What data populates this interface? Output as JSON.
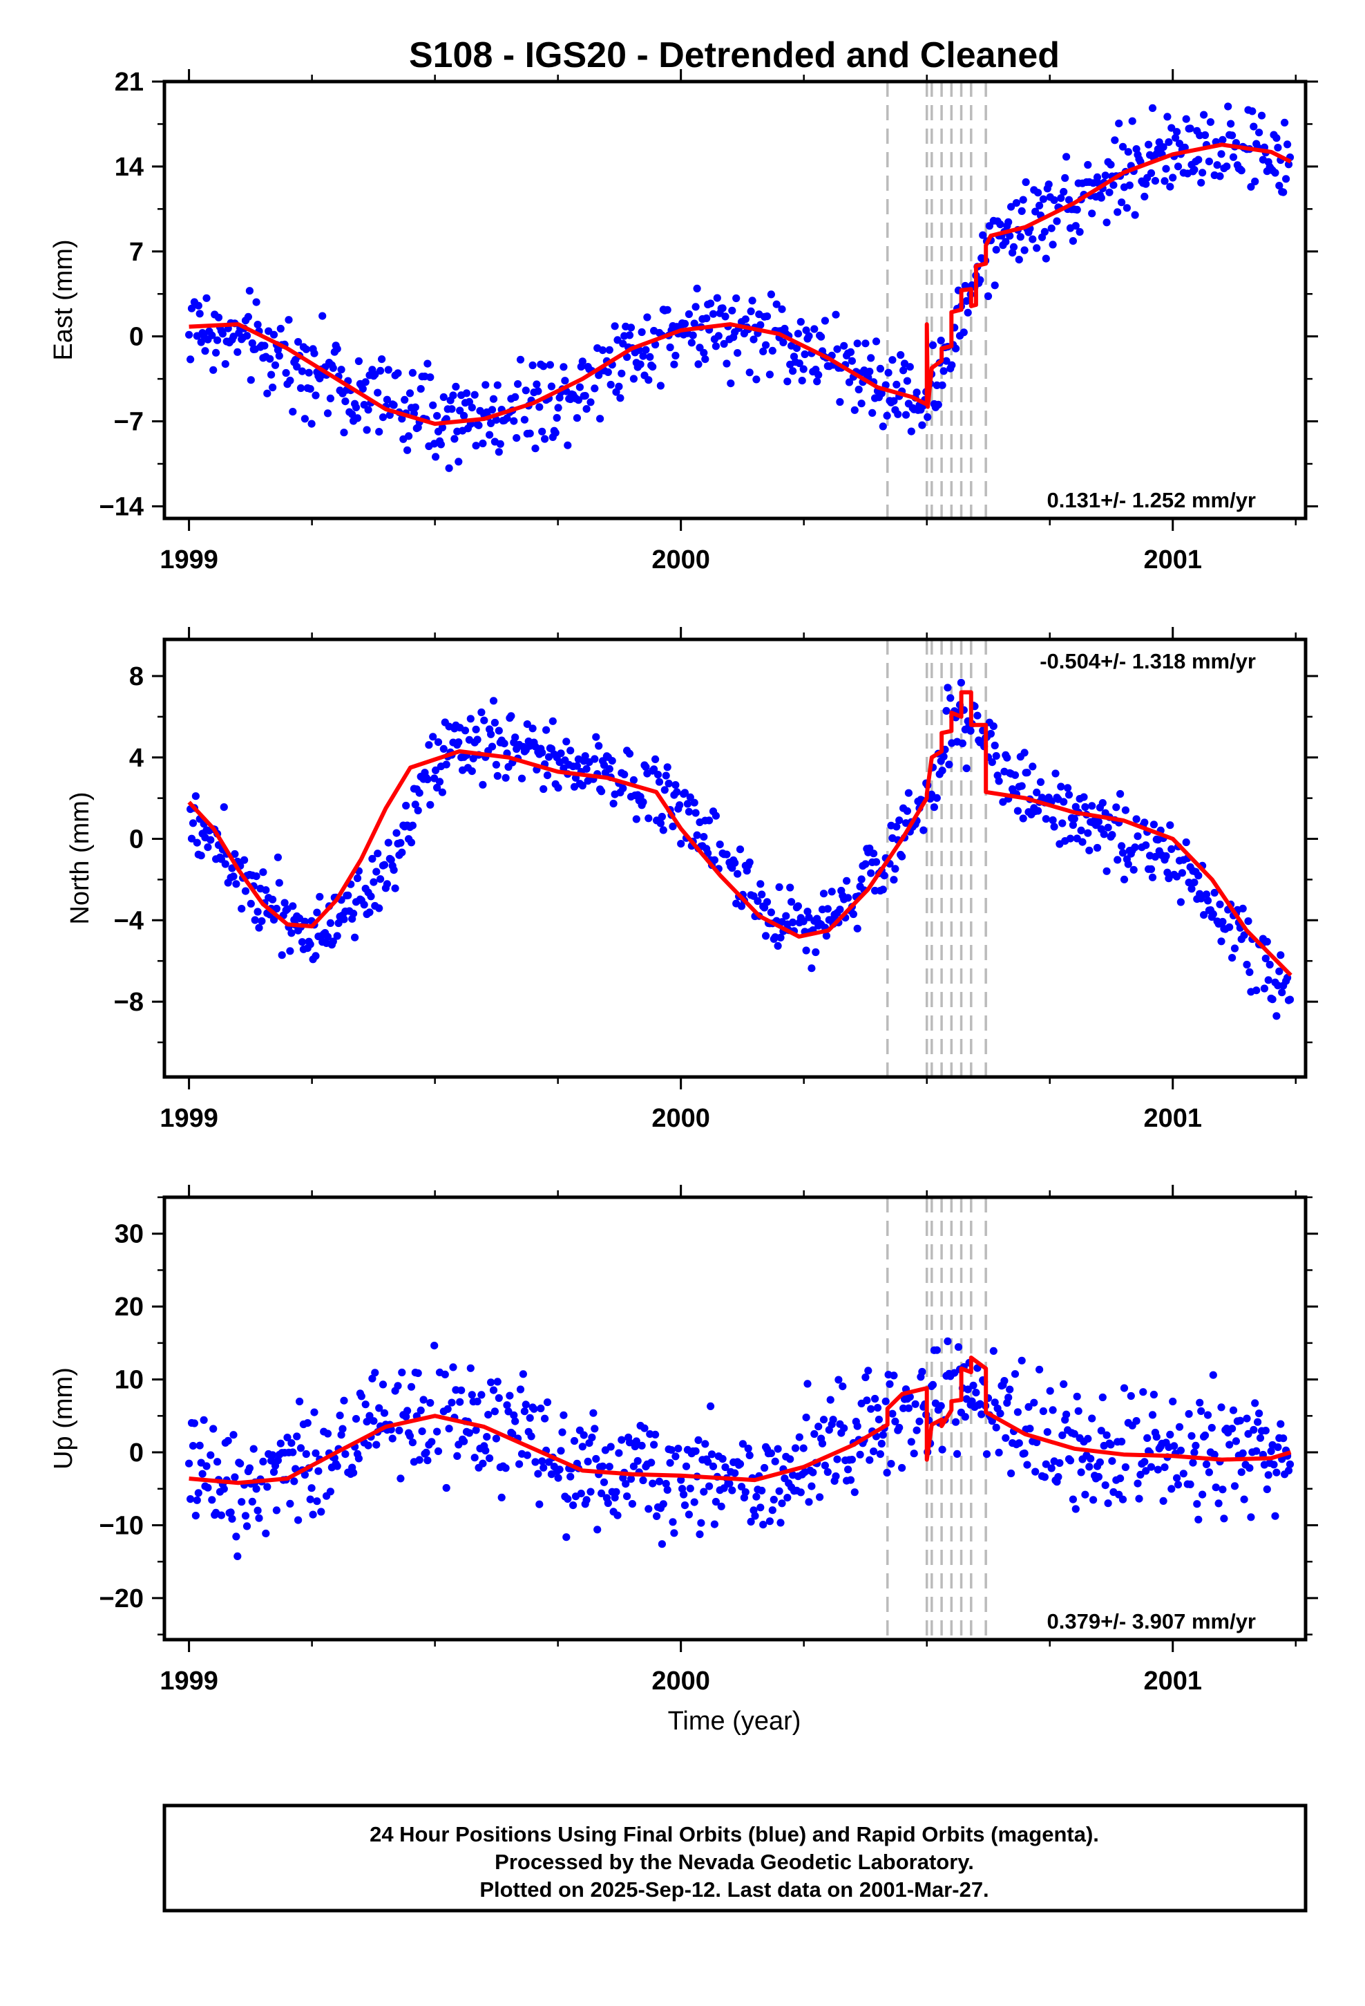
{
  "title": "S108 - IGS20 - Detrended and Cleaned",
  "xlabel": "Time (year)",
  "colors": {
    "data": "#0000ff",
    "model": "#ff0000",
    "steps": "#bbbbbb",
    "frame": "#000000"
  },
  "footer": {
    "line1": "24 Hour Positions Using Final Orbits (blue) and Rapid Orbits (magenta).",
    "line2": "Processed by the Nevada Geodetic Laboratory.",
    "line3": "Plotted on 2025-Sep-12. Last data on 2001-Mar-27."
  },
  "chart_data": [
    {
      "type": "scatter",
      "ylabel": "East (mm)",
      "xlim": [
        1998.95,
        2001.27
      ],
      "ylim": [
        -15,
        21
      ],
      "xticks": [
        "1999",
        "2000",
        "2001"
      ],
      "yticks": [
        "21",
        "14",
        "7",
        "0",
        "-7",
        "-14"
      ],
      "rate_text": "0.131+/- 1.252 mm/yr",
      "series": [
        {
          "kind": "daily positions",
          "trend": [
            [
              1999.0,
              0.8
            ],
            [
              1999.2,
              -1.5
            ],
            [
              1999.4,
              -5.5
            ],
            [
              1999.55,
              -7.0
            ],
            [
              1999.75,
              -5.0
            ],
            [
              1999.9,
              -1.0
            ],
            [
              2000.05,
              1.0
            ],
            [
              2000.2,
              0.0
            ],
            [
              2000.4,
              -4.0
            ],
            [
              2000.5,
              -5.3
            ],
            [
              2000.55,
              -1.0
            ],
            [
              2000.6,
              4.5
            ],
            [
              2000.65,
              8.5
            ],
            [
              2000.8,
              11.5
            ],
            [
              2000.95,
              14.5
            ],
            [
              2001.1,
              15.8
            ],
            [
              2001.22,
              14.5
            ]
          ],
          "noise": 2.6
        },
        {
          "kind": "model",
          "points": [
            [
              1999.0,
              0.8
            ],
            [
              1999.1,
              1.0
            ],
            [
              1999.2,
              -1.0
            ],
            [
              1999.3,
              -3.5
            ],
            [
              1999.4,
              -6.0
            ],
            [
              1999.5,
              -7.2
            ],
            [
              1999.6,
              -6.8
            ],
            [
              1999.7,
              -5.5
            ],
            [
              1999.8,
              -3.5
            ],
            [
              1999.9,
              -1.0
            ],
            [
              2000.0,
              0.5
            ],
            [
              2000.1,
              1.0
            ],
            [
              2000.2,
              0.2
            ],
            [
              2000.3,
              -1.8
            ],
            [
              2000.4,
              -4.2
            ],
            [
              2000.47,
              -5.0
            ],
            [
              2000.5,
              -5.6
            ],
            [
              2000.5,
              1.0
            ],
            [
              2000.502,
              -5.8
            ],
            [
              2000.51,
              -2.6
            ],
            [
              2000.53,
              -2.0
            ],
            [
              2000.53,
              -1.0
            ],
            [
              2000.55,
              -0.8
            ],
            [
              2000.55,
              2.0
            ],
            [
              2000.57,
              2.2
            ],
            [
              2000.57,
              3.8
            ],
            [
              2000.59,
              3.9
            ],
            [
              2000.59,
              2.5
            ],
            [
              2000.6,
              2.6
            ],
            [
              2000.6,
              5.8
            ],
            [
              2000.62,
              6.0
            ],
            [
              2000.62,
              7.5
            ],
            [
              2000.63,
              8.3
            ],
            [
              2000.7,
              9.0
            ],
            [
              2000.8,
              11.0
            ],
            [
              2000.9,
              13.5
            ],
            [
              2001.0,
              15.0
            ],
            [
              2001.1,
              15.8
            ],
            [
              2001.2,
              15.2
            ],
            [
              2001.24,
              14.4
            ]
          ]
        }
      ]
    },
    {
      "type": "scatter",
      "ylabel": "North (mm)",
      "xlim": [
        1998.95,
        2001.27
      ],
      "ylim": [
        -11.7,
        9.8
      ],
      "xticks": [
        "1999",
        "2000",
        "2001"
      ],
      "yticks": [
        "8",
        "4",
        "0",
        "-4",
        "-8"
      ],
      "rate_text": "-0.504+/- 1.318 mm/yr",
      "series": [
        {
          "kind": "daily positions",
          "trend": [
            [
              1999.0,
              1.5
            ],
            [
              1999.1,
              -1.5
            ],
            [
              1999.25,
              -4.8
            ],
            [
              1999.4,
              -1.5
            ],
            [
              1999.5,
              3.5
            ],
            [
              1999.6,
              4.8
            ],
            [
              1999.8,
              3.5
            ],
            [
              1999.95,
              2.5
            ],
            [
              2000.1,
              -1.0
            ],
            [
              2000.2,
              -4.0
            ],
            [
              2000.3,
              -4.0
            ],
            [
              2000.4,
              -1.5
            ],
            [
              2000.5,
              2.0
            ],
            [
              2000.55,
              6.0
            ],
            [
              2000.62,
              5.0
            ],
            [
              2000.7,
              2.0
            ],
            [
              2000.85,
              0.5
            ],
            [
              2001.0,
              -1.0
            ],
            [
              2001.15,
              -5.0
            ],
            [
              2001.24,
              -8.0
            ]
          ],
          "noise": 1.3
        },
        {
          "kind": "model",
          "points": [
            [
              1999.0,
              1.8
            ],
            [
              1999.05,
              0.5
            ],
            [
              1999.1,
              -1.5
            ],
            [
              1999.15,
              -3.2
            ],
            [
              1999.2,
              -4.2
            ],
            [
              1999.25,
              -4.3
            ],
            [
              1999.3,
              -3.0
            ],
            [
              1999.35,
              -1.0
            ],
            [
              1999.4,
              1.5
            ],
            [
              1999.45,
              3.5
            ],
            [
              1999.55,
              4.3
            ],
            [
              1999.65,
              4.0
            ],
            [
              1999.75,
              3.3
            ],
            [
              1999.85,
              3.0
            ],
            [
              1999.95,
              2.3
            ],
            [
              2000.0,
              0.5
            ],
            [
              2000.08,
              -1.8
            ],
            [
              2000.16,
              -3.8
            ],
            [
              2000.24,
              -4.8
            ],
            [
              2000.3,
              -4.5
            ],
            [
              2000.38,
              -2.5
            ],
            [
              2000.45,
              0.0
            ],
            [
              2000.5,
              2.0
            ],
            [
              2000.5,
              2.2
            ],
            [
              2000.51,
              4.0
            ],
            [
              2000.53,
              4.3
            ],
            [
              2000.53,
              5.2
            ],
            [
              2000.55,
              5.3
            ],
            [
              2000.55,
              6.2
            ],
            [
              2000.57,
              6.0
            ],
            [
              2000.57,
              7.2
            ],
            [
              2000.59,
              7.2
            ],
            [
              2000.59,
              5.6
            ],
            [
              2000.62,
              5.6
            ],
            [
              2000.62,
              2.3
            ],
            [
              2000.7,
              2.0
            ],
            [
              2000.8,
              1.3
            ],
            [
              2000.9,
              0.9
            ],
            [
              2001.0,
              0.0
            ],
            [
              2001.08,
              -2.0
            ],
            [
              2001.15,
              -4.5
            ],
            [
              2001.24,
              -6.7
            ]
          ]
        }
      ]
    },
    {
      "type": "scatter",
      "ylabel": "Up (mm)",
      "xlim": [
        1998.95,
        2001.27
      ],
      "ylim": [
        -25.7,
        35
      ],
      "xticks": [
        "1999",
        "2000",
        "2001"
      ],
      "yticks": [
        "30",
        "20",
        "10",
        "0",
        "-10",
        "-20"
      ],
      "rate_text": "0.379+/- 3.907 mm/yr",
      "series": [
        {
          "kind": "daily positions",
          "trend": [
            [
              1999.0,
              -4.0
            ],
            [
              1999.2,
              -3.0
            ],
            [
              1999.35,
              3.0
            ],
            [
              1999.5,
              5.5
            ],
            [
              1999.65,
              2.0
            ],
            [
              1999.8,
              -3.0
            ],
            [
              2000.0,
              -3.0
            ],
            [
              2000.15,
              -3.5
            ],
            [
              2000.3,
              0.0
            ],
            [
              2000.45,
              6.0
            ],
            [
              2000.55,
              8.0
            ],
            [
              2000.65,
              5.0
            ],
            [
              2000.8,
              0.0
            ],
            [
              2001.0,
              0.0
            ],
            [
              2001.24,
              0.0
            ]
          ],
          "noise": 6.0
        },
        {
          "kind": "model",
          "points": [
            [
              1999.0,
              -3.6
            ],
            [
              1999.1,
              -4.2
            ],
            [
              1999.2,
              -3.6
            ],
            [
              1999.3,
              0.0
            ],
            [
              1999.4,
              3.5
            ],
            [
              1999.5,
              5.0
            ],
            [
              1999.6,
              3.5
            ],
            [
              1999.7,
              0.5
            ],
            [
              1999.8,
              -2.5
            ],
            [
              1999.9,
              -3.0
            ],
            [
              2000.0,
              -3.2
            ],
            [
              2000.1,
              -3.6
            ],
            [
              2000.15,
              -3.8
            ],
            [
              2000.25,
              -2.0
            ],
            [
              2000.35,
              1.0
            ],
            [
              2000.42,
              3.8
            ],
            [
              2000.42,
              6.0
            ],
            [
              2000.45,
              8.0
            ],
            [
              2000.5,
              8.8
            ],
            [
              2000.5,
              -1.0
            ],
            [
              2000.51,
              3.8
            ],
            [
              2000.53,
              4.5
            ],
            [
              2000.53,
              3.6
            ],
            [
              2000.55,
              5.8
            ],
            [
              2000.55,
              7.0
            ],
            [
              2000.57,
              7.2
            ],
            [
              2000.57,
              11.5
            ],
            [
              2000.59,
              11.0
            ],
            [
              2000.59,
              13.0
            ],
            [
              2000.62,
              11.5
            ],
            [
              2000.62,
              5.5
            ],
            [
              2000.7,
              2.5
            ],
            [
              2000.8,
              0.5
            ],
            [
              2000.9,
              -0.3
            ],
            [
              2001.0,
              -0.5
            ],
            [
              2001.1,
              -1.0
            ],
            [
              2001.2,
              -0.8
            ],
            [
              2001.24,
              0.0
            ]
          ]
        }
      ]
    }
  ]
}
